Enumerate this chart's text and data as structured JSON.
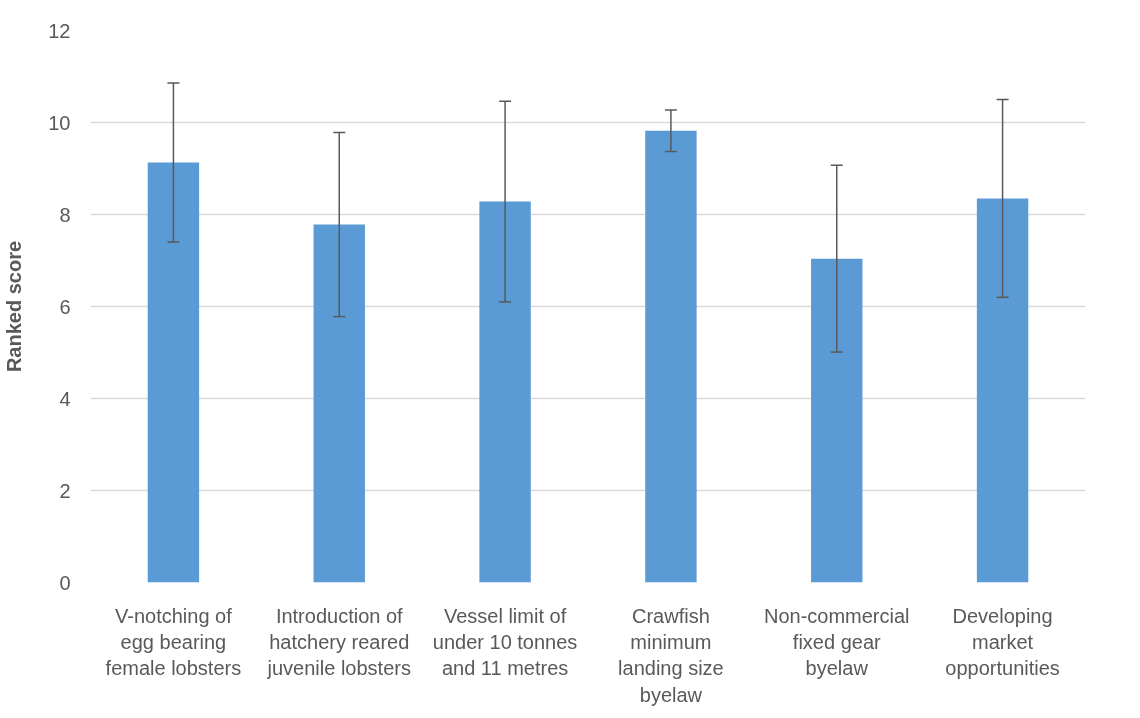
{
  "chart_data": {
    "type": "bar",
    "ylabel": "Ranked score",
    "categories": [
      "V-notching of\negg bearing\nfemale lobsters",
      "Introduction of\nhatchery reared\njuvenile lobsters",
      "Vessel limit of\nunder 10 tonnes\nand 11 metres",
      "Crawfish\nminimum\nlanding size\nbyelaw",
      "Non-commercial\nfixed gear\nbyelaw",
      "Developing\nmarket\nopportunities"
    ],
    "values": [
      9.13,
      7.78,
      8.28,
      9.82,
      7.04,
      8.35
    ],
    "errors": [
      1.73,
      2.0,
      2.18,
      0.45,
      2.03,
      2.15
    ],
    "color": "#5b9bd5",
    "ylim": [
      0,
      12
    ],
    "yticks": [
      0,
      2,
      4,
      6,
      8,
      10,
      12
    ],
    "grid": "y"
  }
}
